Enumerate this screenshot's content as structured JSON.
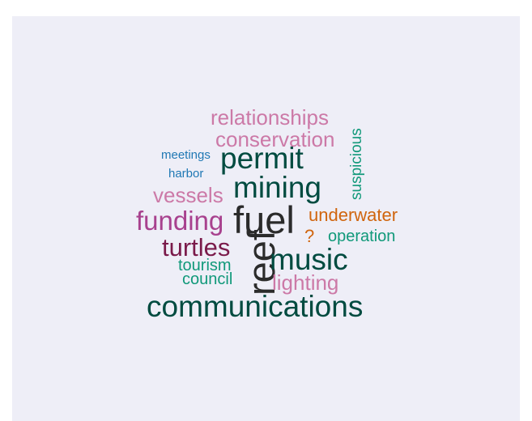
{
  "background_color": "#eeeef7",
  "words": [
    {
      "text": "relationships",
      "color": "#cc79a7"
    },
    {
      "text": "conservation",
      "color": "#cc79a7"
    },
    {
      "text": "meetings",
      "color": "#1f78b4"
    },
    {
      "text": "permit",
      "color": "#004b40"
    },
    {
      "text": "harbor",
      "color": "#1f78b4"
    },
    {
      "text": "suspicious",
      "color": "#11997a"
    },
    {
      "text": "mining",
      "color": "#004b40"
    },
    {
      "text": "vessels",
      "color": "#cc79a7"
    },
    {
      "text": "funding",
      "color": "#a8418e"
    },
    {
      "text": "fuel",
      "color": "#2b2b2b"
    },
    {
      "text": "underwater",
      "color": "#d0650e"
    },
    {
      "text": "?",
      "color": "#d0650e"
    },
    {
      "text": "operation",
      "color": "#11997a"
    },
    {
      "text": "turtles",
      "color": "#7a1a4a"
    },
    {
      "text": "reef",
      "color": "#2b2b2b"
    },
    {
      "text": "music",
      "color": "#004b40"
    },
    {
      "text": "tourism",
      "color": "#11997a"
    },
    {
      "text": "council",
      "color": "#11997a"
    },
    {
      "text": "lighting",
      "color": "#cc79a7"
    },
    {
      "text": "communications",
      "color": "#004b40"
    }
  ]
}
